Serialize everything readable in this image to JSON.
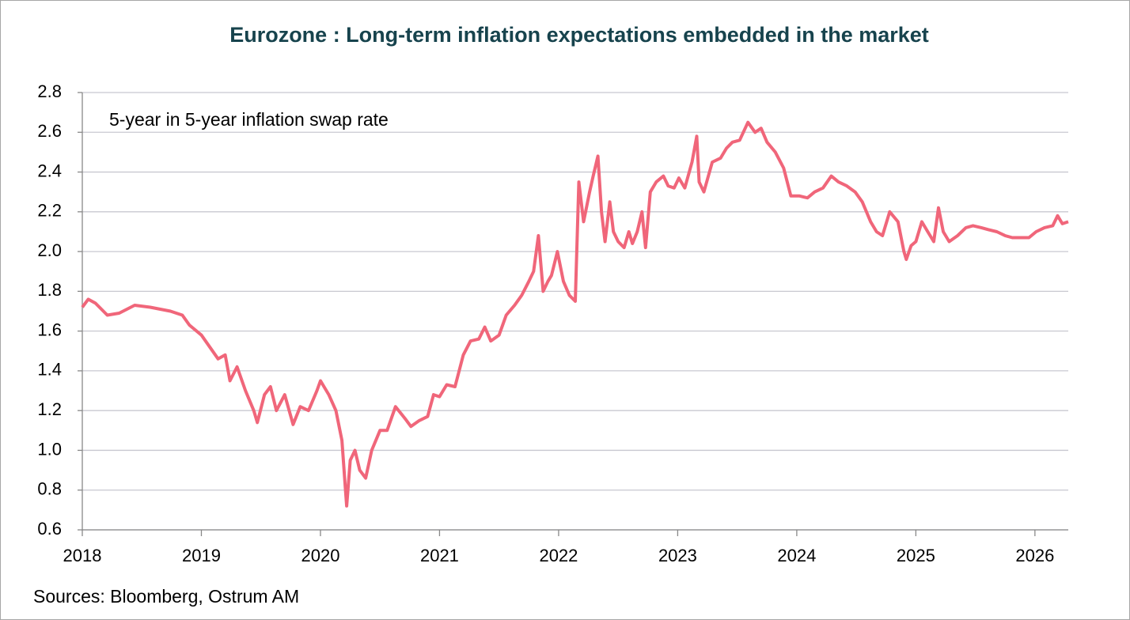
{
  "chart_data": {
    "type": "line",
    "title": "Eurozone : Long-term inflation expectations embedded in the market",
    "annotation": "5-year in 5-year inflation swap rate",
    "source": "Sources: Bloomberg, Ostrum AM",
    "grid": true,
    "xlim": [
      2018,
      2026.28
    ],
    "xticks": [
      2018,
      2019,
      2020,
      2021,
      2022,
      2023,
      2024,
      2025,
      2026
    ],
    "ylim": [
      0.6,
      2.8
    ],
    "yticks": [
      0.6,
      0.8,
      {
        "value": 1,
        "label": "1.0"
      },
      1.2,
      1.4,
      1.6,
      1.8,
      {
        "value": 2,
        "label": "2.0"
      },
      2.2,
      2.4,
      2.6,
      2.8
    ],
    "x": [
      2018.0,
      2018.05,
      2018.11,
      2018.21,
      2018.31,
      2018.44,
      2018.57,
      2018.74,
      2018.84,
      2018.9,
      2019.0,
      2019.07,
      2019.14,
      2019.2,
      2019.24,
      2019.3,
      2019.37,
      2019.44,
      2019.47,
      2019.53,
      2019.58,
      2019.63,
      2019.7,
      2019.77,
      2019.83,
      2019.9,
      2019.97,
      2020.0,
      2020.07,
      2020.13,
      2020.18,
      2020.21,
      2020.22,
      2020.25,
      2020.29,
      2020.33,
      2020.38,
      2020.43,
      2020.5,
      2020.56,
      2020.63,
      2020.71,
      2020.76,
      2020.83,
      2020.9,
      2020.95,
      2021.0,
      2021.06,
      2021.13,
      2021.2,
      2021.26,
      2021.33,
      2021.38,
      2021.43,
      2021.5,
      2021.56,
      2021.63,
      2021.69,
      2021.75,
      2021.79,
      2021.83,
      2021.87,
      2021.91,
      2021.94,
      2021.99,
      2022.04,
      2022.09,
      2022.14,
      2022.17,
      2022.21,
      2022.26,
      2022.29,
      2022.33,
      2022.36,
      2022.39,
      2022.43,
      2022.46,
      2022.5,
      2022.55,
      2022.59,
      2022.62,
      2022.66,
      2022.7,
      2022.73,
      2022.77,
      2022.82,
      2022.88,
      2022.92,
      2022.97,
      2023.01,
      2023.06,
      2023.12,
      2023.16,
      2023.18,
      2023.22,
      2023.29,
      2023.36,
      2023.41,
      2023.46,
      2023.52,
      2023.59,
      2023.65,
      2023.7,
      2023.75,
      2023.82,
      2023.89,
      2023.95,
      2024.02,
      2024.09,
      2024.15,
      2024.22,
      2024.29,
      2024.35,
      2024.42,
      2024.49,
      2024.55,
      2024.62,
      2024.67,
      2024.72,
      2024.78,
      2024.85,
      2024.9,
      2024.92,
      2024.96,
      2025.0,
      2025.05,
      2025.1,
      2025.15,
      2025.19,
      2025.23,
      2025.28,
      2025.35,
      2025.42,
      2025.48,
      2025.55,
      2025.61,
      2025.68,
      2025.75,
      2025.81,
      2025.88,
      2025.95,
      2026.01,
      2026.08,
      2026.15,
      2026.19,
      2026.23,
      2026.28
    ],
    "series": [
      {
        "color": "#f0667a",
        "values": [
          1.72,
          1.76,
          1.74,
          1.68,
          1.69,
          1.73,
          1.72,
          1.7,
          1.68,
          1.63,
          1.58,
          1.52,
          1.46,
          1.48,
          1.35,
          1.42,
          1.3,
          1.2,
          1.14,
          1.28,
          1.32,
          1.2,
          1.28,
          1.13,
          1.22,
          1.2,
          1.3,
          1.35,
          1.28,
          1.2,
          1.05,
          0.8,
          0.72,
          0.95,
          1.0,
          0.9,
          0.86,
          1.0,
          1.1,
          1.1,
          1.22,
          1.16,
          1.12,
          1.15,
          1.17,
          1.28,
          1.27,
          1.33,
          1.32,
          1.48,
          1.55,
          1.56,
          1.62,
          1.55,
          1.58,
          1.68,
          1.73,
          1.78,
          1.85,
          1.9,
          2.08,
          1.8,
          1.85,
          1.88,
          2.0,
          1.85,
          1.78,
          1.75,
          2.35,
          2.15,
          2.3,
          2.38,
          2.48,
          2.2,
          2.05,
          2.25,
          2.1,
          2.05,
          2.02,
          2.1,
          2.04,
          2.1,
          2.2,
          2.02,
          2.3,
          2.35,
          2.38,
          2.33,
          2.32,
          2.37,
          2.32,
          2.45,
          2.58,
          2.35,
          2.3,
          2.45,
          2.47,
          2.52,
          2.55,
          2.56,
          2.65,
          2.6,
          2.62,
          2.55,
          2.5,
          2.42,
          2.28,
          2.28,
          2.27,
          2.3,
          2.32,
          2.38,
          2.35,
          2.33,
          2.3,
          2.25,
          2.15,
          2.1,
          2.08,
          2.2,
          2.15,
          2.0,
          1.96,
          2.03,
          2.05,
          2.15,
          2.1,
          2.05,
          2.22,
          2.1,
          2.05,
          2.08,
          2.12,
          2.13,
          2.12,
          2.11,
          2.1,
          2.08,
          2.07,
          2.07,
          2.07,
          2.1,
          2.12,
          2.13,
          2.18,
          2.14,
          2.15
        ]
      }
    ]
  }
}
